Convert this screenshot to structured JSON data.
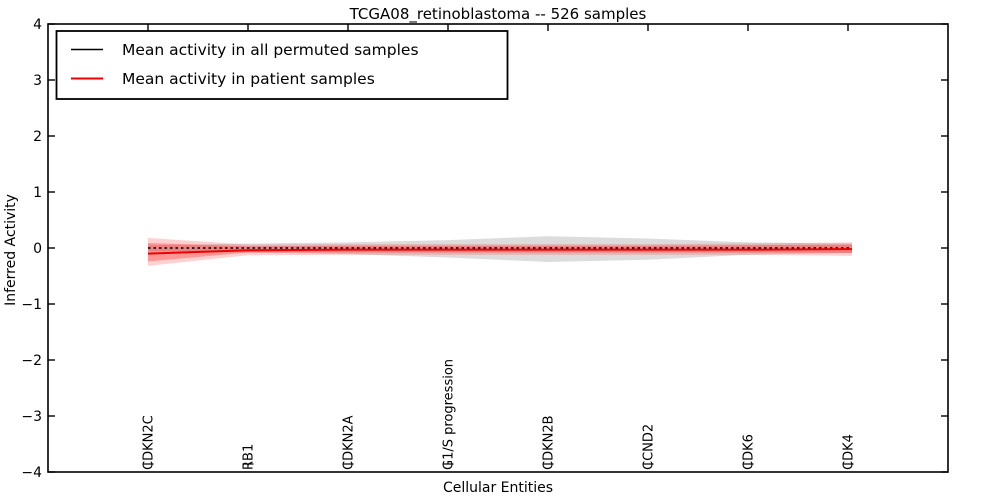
{
  "figure": {
    "title": "TCGA08_retinoblastoma -- 526 samples",
    "xlabel": "Cellular Entities",
    "ylabel": "Inferred Activity"
  },
  "legend": {
    "position": "upper left",
    "items": [
      {
        "label": "Mean activity in all permuted samples",
        "color": "#000000",
        "style": "solid-thin"
      },
      {
        "label": "Mean activity in patient samples",
        "color": "#ee0000",
        "style": "solid"
      }
    ]
  },
  "chart_data": {
    "type": "line",
    "title": "TCGA08_retinoblastoma -- 526 samples",
    "xlabel": "Cellular Entities",
    "ylabel": "Inferred Activity",
    "ylim": [
      -4,
      4
    ],
    "yticks": [
      4,
      3,
      2,
      1,
      0,
      -1,
      -2,
      -3,
      -4
    ],
    "grid": false,
    "legend_position": "upper left",
    "categories": [
      "CDKN2C",
      "RB1",
      "CDKN2A",
      "G1/S progression",
      "CDKN2B",
      "CCND2",
      "CDK6",
      "CDK4"
    ],
    "series": [
      {
        "name": "Mean activity in all permuted samples",
        "color": "#000000",
        "line_style": "dashed",
        "values": [
          0.0,
          0.0,
          0.0,
          0.0,
          0.0,
          0.0,
          0.0,
          0.0
        ],
        "band": {
          "color": "rgba(130,130,130,0.28)",
          "upper": [
            0.05,
            0.08,
            0.1,
            0.14,
            0.21,
            0.17,
            0.1,
            0.08
          ],
          "lower": [
            -0.05,
            -0.08,
            -0.11,
            -0.17,
            -0.25,
            -0.21,
            -0.12,
            -0.09
          ]
        }
      },
      {
        "name": "Mean activity in patient samples",
        "color": "#ee0000",
        "line_style": "solid",
        "values": [
          -0.1,
          -0.04,
          -0.03,
          -0.03,
          -0.03,
          -0.03,
          -0.03,
          -0.02
        ],
        "band": {
          "color": "rgba(255,0,0,0.18)",
          "upper": [
            0.18,
            0.06,
            0.07,
            0.07,
            0.07,
            0.07,
            0.08,
            0.1
          ],
          "lower": [
            -0.32,
            -0.13,
            -0.12,
            -0.12,
            -0.12,
            -0.12,
            -0.12,
            -0.14
          ]
        },
        "band_inner": {
          "color": "rgba(255,0,0,0.28)",
          "upper": [
            0.09,
            0.03,
            0.04,
            0.04,
            0.04,
            0.04,
            0.05,
            0.06
          ],
          "lower": [
            -0.24,
            -0.08,
            -0.08,
            -0.08,
            -0.08,
            -0.08,
            -0.08,
            -0.09
          ]
        }
      }
    ]
  }
}
